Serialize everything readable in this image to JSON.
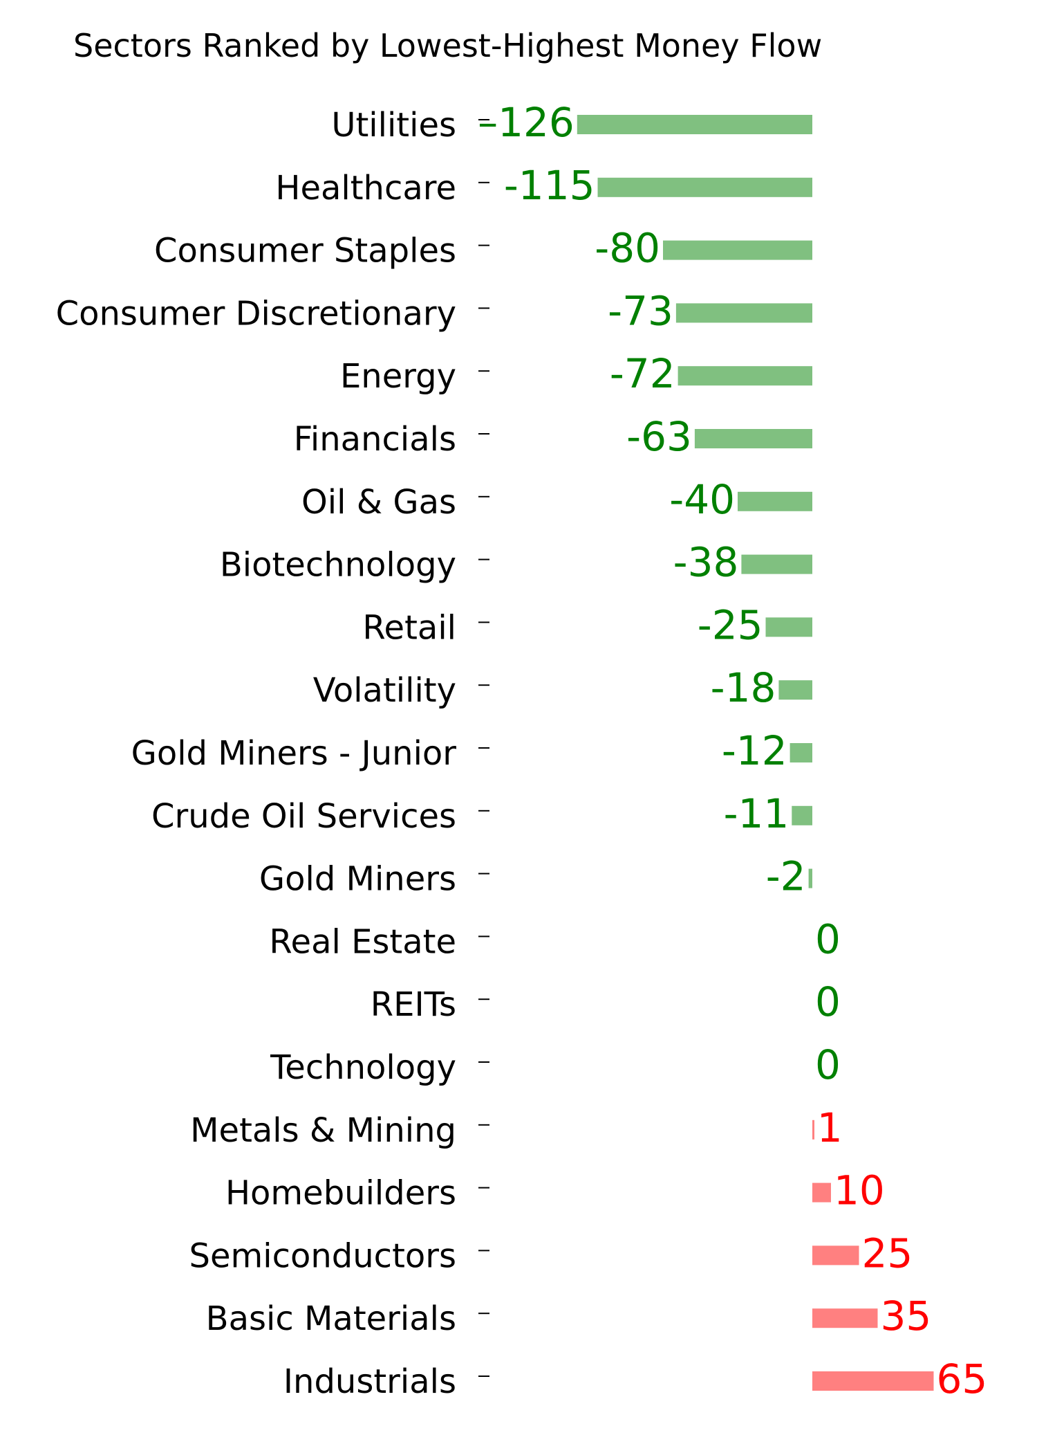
{
  "chart_data": {
    "type": "bar",
    "orientation": "horizontal",
    "title": "Sectors Ranked by Lowest-Highest Money Flow",
    "categories": [
      "Utilities",
      "Healthcare",
      "Consumer Staples",
      "Consumer Discretionary",
      "Energy",
      "Financials",
      "Oil & Gas",
      "Biotechnology",
      "Retail",
      "Volatility",
      "Gold Miners - Junior",
      "Crude Oil Services",
      "Gold Miners",
      "Real Estate",
      "REITs",
      "Technology",
      "Metals & Mining",
      "Homebuilders",
      "Semiconductors",
      "Basic Materials",
      "Industrials"
    ],
    "values": [
      -126,
      -115,
      -80,
      -73,
      -72,
      -63,
      -40,
      -38,
      -25,
      -18,
      -12,
      -11,
      -2,
      0,
      0,
      0,
      1,
      10,
      25,
      35,
      65
    ],
    "value_labels": [
      "–126",
      "-115",
      "-80",
      "-73",
      "-72",
      "-63",
      "-40",
      "-38",
      "-25",
      "-18",
      "-12",
      "-11",
      "-2",
      "0",
      "0",
      "0",
      "1",
      "10",
      "25",
      "35",
      "65"
    ],
    "xlim": [
      -126,
      65
    ],
    "grid": false,
    "colors": {
      "negative_bar": "#80c080",
      "negative_text": "#008000",
      "positive_bar": "#ff8080",
      "positive_text": "#ff0000"
    }
  }
}
